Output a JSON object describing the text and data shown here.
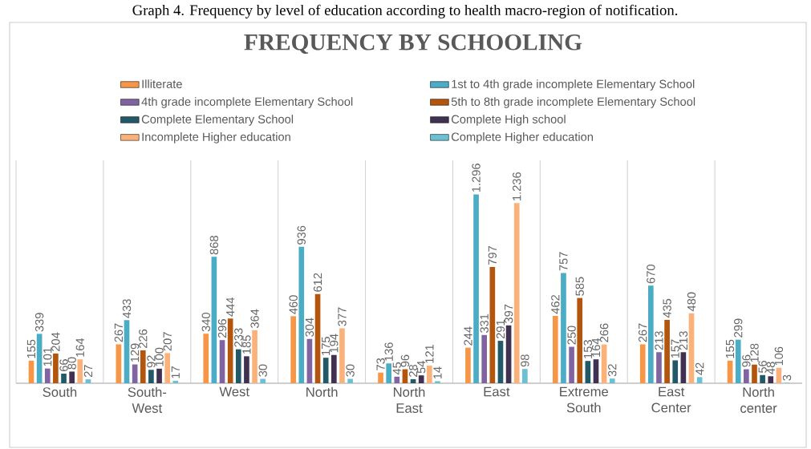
{
  "chart_data": {
    "type": "bar",
    "title": "FREQUENCY BY SCHOOLING",
    "annotations": [
      "Graph 4. Frequency by level of education according to health macro-region of notification."
    ],
    "categories": [
      "South",
      "South-West",
      "West",
      "North",
      "North East",
      "East",
      "Extreme South",
      "East Center",
      "North center"
    ],
    "legend": "top",
    "grid": "x",
    "series": [
      {
        "name": "Illiterate",
        "color": "#f79646",
        "values": [
          155,
          267,
          340,
          460,
          73,
          244,
          462,
          267,
          155
        ],
        "value_labels": [
          "155",
          "267",
          "340",
          "460",
          "73",
          "244",
          "462",
          "267",
          "155"
        ]
      },
      {
        "name": "1st to 4th grade  incomplete Elementary School",
        "color": "#4bacc6",
        "values": [
          339,
          433,
          868,
          936,
          136,
          1296,
          757,
          670,
          299
        ],
        "value_labels": [
          "339",
          "433",
          "868",
          "936",
          "136",
          "1.296",
          "757",
          "670",
          "299"
        ]
      },
      {
        "name": "4th grade incomplete Elementary School",
        "color": "#8064a2",
        "values": [
          101,
          129,
          296,
          304,
          45,
          331,
          250,
          213,
          96
        ],
        "value_labels": [
          "101",
          "129",
          "296",
          "304",
          "45",
          "331",
          "250",
          "213",
          "96"
        ]
      },
      {
        "name": "5th to 8th grade incomplete Elementary School",
        "color": "#b3550c",
        "values": [
          204,
          226,
          444,
          612,
          96,
          797,
          585,
          435,
          128
        ],
        "value_labels": [
          "204",
          "226",
          "444",
          "612",
          "96",
          "797",
          "585",
          "435",
          "128"
        ]
      },
      {
        "name": "Complete Elementary School",
        "color": "#215968",
        "values": [
          66,
          92,
          233,
          175,
          28,
          291,
          153,
          157,
          56
        ],
        "value_labels": [
          "66",
          "92",
          "233",
          "175",
          "28",
          "291",
          "153",
          "157",
          "56"
        ]
      },
      {
        "name": "Complete High school",
        "color": "#403152",
        "values": [
          80,
          100,
          185,
          194,
          54,
          397,
          164,
          213,
          48
        ],
        "value_labels": [
          "80",
          "100",
          "185",
          "194",
          "54",
          "397",
          "164",
          "213",
          "48"
        ]
      },
      {
        "name": "Incomplete Higher education",
        "color": "#fab27a",
        "values": [
          164,
          207,
          364,
          377,
          121,
          1236,
          266,
          480,
          106
        ],
        "value_labels": [
          "164",
          "207",
          "364",
          "377",
          "121",
          "1.236",
          "266",
          "480",
          "106"
        ]
      },
      {
        "name": "Complete Higher education",
        "color": "#6cc0d3",
        "values": [
          27,
          17,
          30,
          30,
          14,
          98,
          32,
          42,
          3
        ],
        "value_labels": [
          "27",
          "17",
          "30",
          "30",
          "14",
          "98",
          "32",
          "42",
          "3"
        ]
      }
    ]
  }
}
